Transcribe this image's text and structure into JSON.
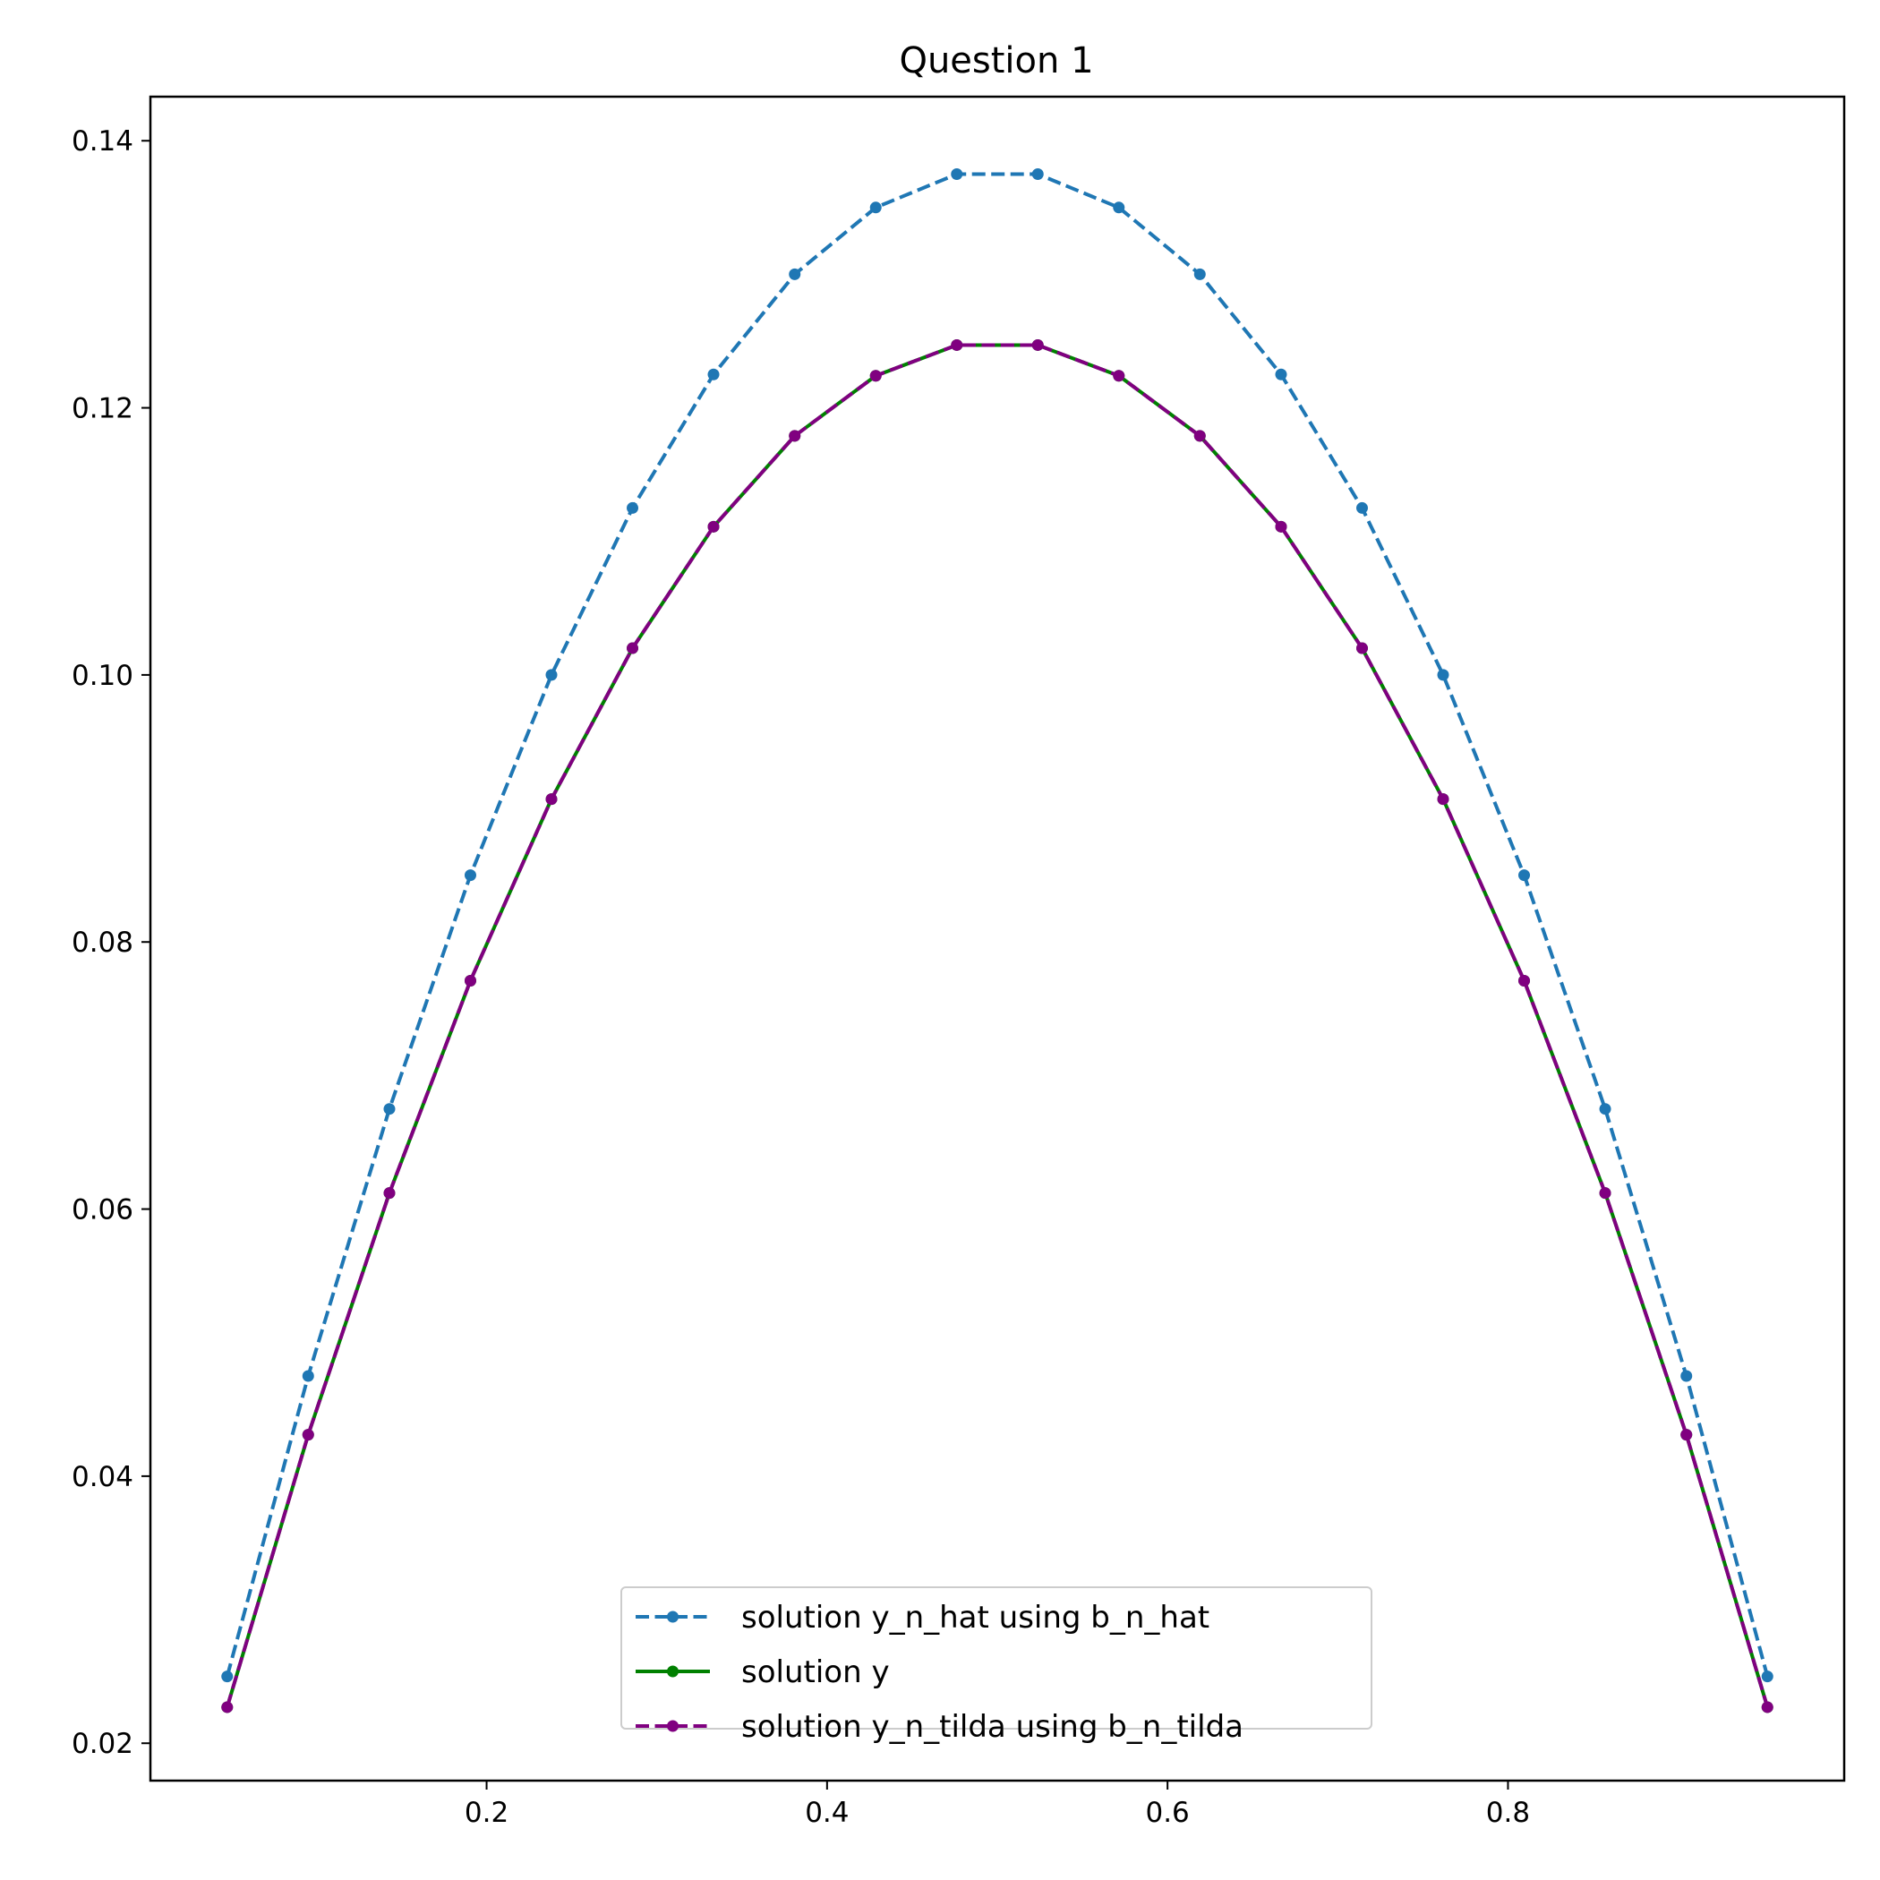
{
  "chart_data": {
    "type": "line",
    "title": "Question 1",
    "xlabel": "",
    "ylabel": "",
    "xlim": [
      0.0025,
      0.9975
    ],
    "ylim": [
      0.0172,
      0.1433
    ],
    "xticks": [
      0.2,
      0.4,
      0.6,
      0.8
    ],
    "xtick_labels": [
      "0.2",
      "0.4",
      "0.6",
      "0.8"
    ],
    "yticks": [
      0.02,
      0.04,
      0.06,
      0.08,
      0.1,
      0.12,
      0.14
    ],
    "ytick_labels": [
      "0.02",
      "0.04",
      "0.06",
      "0.08",
      "0.10",
      "0.12",
      "0.14"
    ],
    "grid": false,
    "legend_position": "lower-center",
    "x": [
      0.0476,
      0.0952,
      0.1429,
      0.1905,
      0.2381,
      0.2857,
      0.3333,
      0.381,
      0.4286,
      0.4762,
      0.5238,
      0.5714,
      0.619,
      0.6667,
      0.7143,
      0.7619,
      0.8095,
      0.8571,
      0.9048,
      0.9524
    ],
    "series": [
      {
        "name": "solution y_n_hat using b_n_hat",
        "color": "#1f77b4",
        "linestyle": "dashed",
        "marker": "dot",
        "values": [
          0.025,
          0.0475,
          0.0675,
          0.085,
          0.1,
          0.1125,
          0.1225,
          0.13,
          0.135,
          0.1375,
          0.1375,
          0.135,
          0.13,
          0.1225,
          0.1125,
          0.1,
          0.085,
          0.0675,
          0.0475,
          0.025
        ]
      },
      {
        "name": "solution y",
        "color": "#008000",
        "linestyle": "solid",
        "marker": "dot",
        "values": [
          0.0227,
          0.0431,
          0.0612,
          0.0771,
          0.0907,
          0.102,
          0.1111,
          0.1179,
          0.1224,
          0.1247,
          0.1247,
          0.1224,
          0.1179,
          0.1111,
          0.102,
          0.0907,
          0.0771,
          0.0612,
          0.0431,
          0.0227
        ]
      },
      {
        "name": "solution y_n_tilda using b_n_tilda",
        "color": "#800080",
        "linestyle": "dashed",
        "marker": "dot",
        "values": [
          0.0227,
          0.0431,
          0.0612,
          0.0771,
          0.0907,
          0.102,
          0.1111,
          0.1179,
          0.1224,
          0.1247,
          0.1247,
          0.1224,
          0.1179,
          0.1111,
          0.102,
          0.0907,
          0.0771,
          0.0612,
          0.0431,
          0.0227
        ]
      }
    ]
  }
}
